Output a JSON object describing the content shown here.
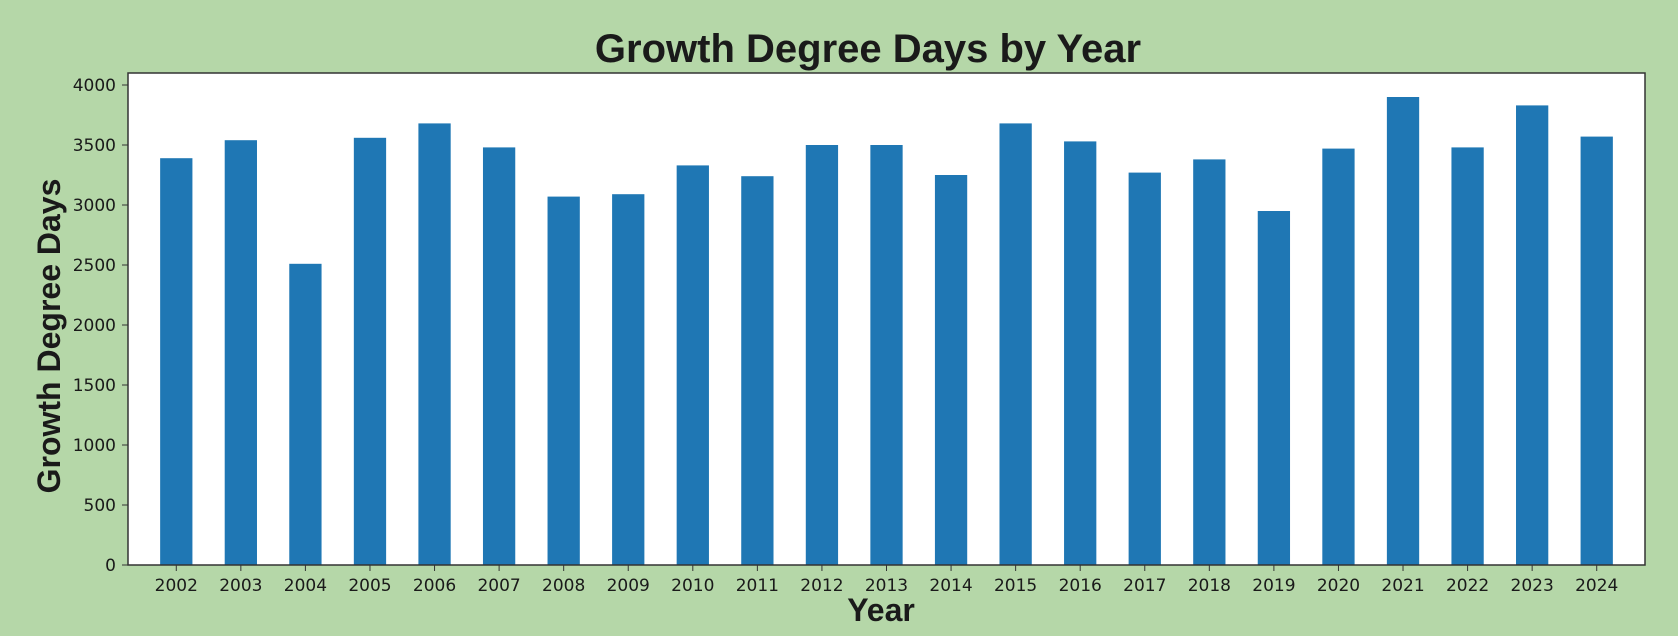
{
  "chart_data": {
    "type": "bar",
    "title": "Growth Degree Days by Year",
    "xlabel": "Year",
    "ylabel": "Growth Degree Days",
    "ylim": [
      0,
      4100
    ],
    "yticks": [
      0,
      500,
      1000,
      1500,
      2000,
      2500,
      3000,
      3500,
      4000
    ],
    "grid": false,
    "legend": "none",
    "categories": [
      "2002",
      "2003",
      "2004",
      "2005",
      "2006",
      "2007",
      "2008",
      "2009",
      "2010",
      "2011",
      "2012",
      "2013",
      "2014",
      "2015",
      "2016",
      "2017",
      "2018",
      "2019",
      "2020",
      "2021",
      "2022",
      "2023",
      "2024"
    ],
    "values": [
      3390,
      3540,
      2510,
      3560,
      3680,
      3480,
      3070,
      3090,
      3330,
      3240,
      3500,
      3500,
      3250,
      3680,
      3530,
      3270,
      3380,
      2950,
      3470,
      3900,
      3480,
      3830,
      3570
    ],
    "colors": {
      "bar": "#1f77b4",
      "plot_bg": "#ffffff",
      "page_bg": "#b5d7a8",
      "frame": "#333333"
    }
  }
}
